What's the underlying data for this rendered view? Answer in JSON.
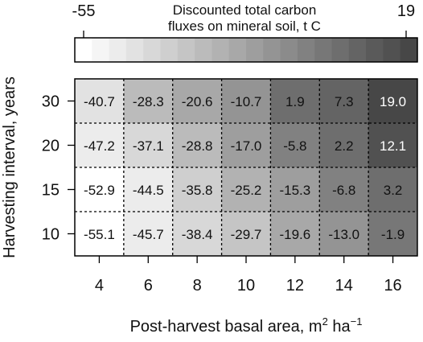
{
  "chart_data": {
    "type": "heatmap",
    "xlabel": "Post-harvest basal area, m",
    "xlabel_sup1": "2",
    "xlabel_mid": " ha",
    "xlabel_sup2": "−1",
    "ylabel": "Harvesting interval, years",
    "x": [
      4,
      6,
      8,
      10,
      12,
      14,
      16
    ],
    "x_tick_labels": [
      "4",
      "6",
      "8",
      "10",
      "12",
      "14",
      "16"
    ],
    "y": [
      10,
      15,
      20,
      30
    ],
    "y_tick_labels": [
      "10",
      "15",
      "20",
      "30"
    ],
    "y_order_top_to_bottom": [
      30,
      20,
      15,
      10
    ],
    "values_top_to_bottom": [
      [
        "-40.7",
        "-28.3",
        "-20.6",
        "-10.7",
        "1.9",
        "7.3",
        "19.0"
      ],
      [
        "-47.2",
        "-37.1",
        "-28.8",
        "-17.0",
        "-5.8",
        "2.2",
        "12.1"
      ],
      [
        "-52.9",
        "-44.5",
        "-35.8",
        "-25.2",
        "-15.3",
        "-6.8",
        "3.2"
      ],
      [
        "-55.1",
        "-45.7",
        "-38.4",
        "-29.7",
        "-19.6",
        "-13.0",
        "-1.9"
      ]
    ],
    "grid": "dotted",
    "colorbar": {
      "title_line1": "Discounted total carbon",
      "title_line2": "fluxes on mineral soil, t C",
      "min_label": "-55",
      "max_label": "19",
      "min": -55,
      "max": 19,
      "low_color": "#ffffff",
      "high_color": "#474747",
      "steps": 20
    }
  }
}
